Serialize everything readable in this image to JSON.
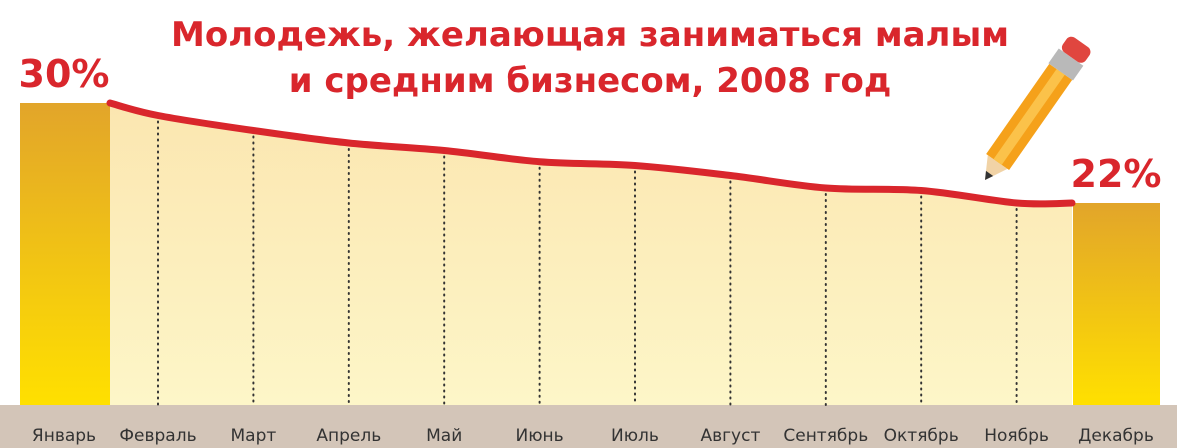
{
  "chart_data": {
    "type": "line",
    "title": [
      "Молодежь, желающая заниматься малым",
      "и средним бизнесом, 2008 год"
    ],
    "categories": [
      "Январь",
      "Февраль",
      "Март",
      "Апрель",
      "Май",
      "Июнь",
      "Июль",
      "Август",
      "Сентябрь",
      "Октябрь",
      "Ноябрь",
      "Декабрь"
    ],
    "series": [
      {
        "name": null,
        "color": "#d9262c",
        "values": [
          30,
          29.0,
          27.8,
          26.8,
          26.2,
          25.3,
          25.0,
          24.2,
          23.2,
          23.0,
          22.0,
          22
        ],
        "value_labels": [
          "30%",
          null,
          null,
          null,
          null,
          null,
          null,
          null,
          null,
          null,
          null,
          "22%"
        ]
      }
    ],
    "ylim": [
      6,
      32
    ]
  }
}
